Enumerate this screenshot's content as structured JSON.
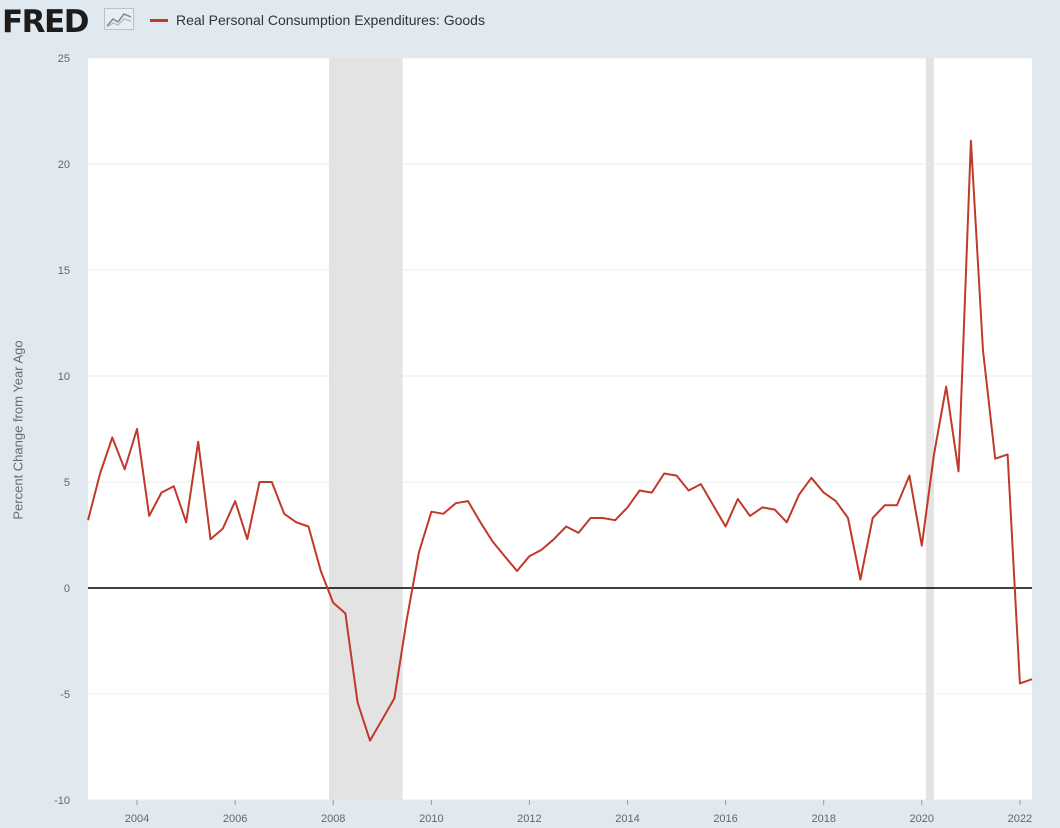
{
  "header": {
    "logo_text": "FRED",
    "logo_icon": "line-chart-icon"
  },
  "colors": {
    "series": "#c0392b",
    "recession": "#e3e3e3",
    "plot_bg": "#ffffff",
    "page_bg": "#e1e9f0",
    "gridline": "#ececec",
    "zero_line": "#000000"
  },
  "chart_data": {
    "type": "line",
    "title": "",
    "xlabel": "",
    "ylabel": "Percent Change from Year Ago",
    "ylim": [
      -10,
      25
    ],
    "yticks": [
      25,
      20,
      15,
      10,
      5,
      0,
      -5,
      -10
    ],
    "xlim": [
      "2003-01-01",
      "2022-04-01"
    ],
    "xticks": [
      "2004",
      "2006",
      "2008",
      "2010",
      "2012",
      "2014",
      "2016",
      "2018",
      "2020",
      "2022"
    ],
    "grid": true,
    "legend_position": "top-left",
    "recessions": [
      {
        "start": "2007-12-01",
        "end": "2009-06-01"
      },
      {
        "start": "2020-02-01",
        "end": "2020-04-01"
      }
    ],
    "series": [
      {
        "name": "Real Personal Consumption Expenditures: Goods",
        "color": "#c0392b",
        "x": [
          "2003-01-01",
          "2003-04-01",
          "2003-07-01",
          "2003-10-01",
          "2004-01-01",
          "2004-04-01",
          "2004-07-01",
          "2004-10-01",
          "2005-01-01",
          "2005-04-01",
          "2005-07-01",
          "2005-10-01",
          "2006-01-01",
          "2006-04-01",
          "2006-07-01",
          "2006-10-01",
          "2007-01-01",
          "2007-04-01",
          "2007-07-01",
          "2007-10-01",
          "2008-01-01",
          "2008-04-01",
          "2008-07-01",
          "2008-10-01",
          "2009-01-01",
          "2009-04-01",
          "2009-07-01",
          "2009-10-01",
          "2010-01-01",
          "2010-04-01",
          "2010-07-01",
          "2010-10-01",
          "2011-01-01",
          "2011-04-01",
          "2011-07-01",
          "2011-10-01",
          "2012-01-01",
          "2012-04-01",
          "2012-07-01",
          "2012-10-01",
          "2013-01-01",
          "2013-04-01",
          "2013-07-01",
          "2013-10-01",
          "2014-01-01",
          "2014-04-01",
          "2014-07-01",
          "2014-10-01",
          "2015-01-01",
          "2015-04-01",
          "2015-07-01",
          "2015-10-01",
          "2016-01-01",
          "2016-04-01",
          "2016-07-01",
          "2016-10-01",
          "2017-01-01",
          "2017-04-01",
          "2017-07-01",
          "2017-10-01",
          "2018-01-01",
          "2018-04-01",
          "2018-07-01",
          "2018-10-01",
          "2019-01-01",
          "2019-04-01",
          "2019-07-01",
          "2019-10-01",
          "2020-01-01",
          "2020-04-01",
          "2020-07-01",
          "2020-10-01",
          "2021-01-01",
          "2021-04-01",
          "2021-07-01",
          "2021-10-01",
          "2022-01-01",
          "2022-04-01"
        ],
        "values": [
          3.2,
          5.4,
          7.1,
          5.6,
          7.5,
          3.4,
          4.5,
          4.8,
          3.1,
          6.9,
          2.3,
          2.8,
          4.1,
          2.3,
          5.0,
          5.0,
          3.5,
          3.1,
          2.9,
          0.8,
          -0.7,
          -1.2,
          -5.4,
          -7.2,
          -6.2,
          -5.2,
          -1.5,
          1.7,
          3.6,
          3.5,
          4.0,
          4.1,
          3.1,
          2.2,
          1.5,
          0.8,
          1.5,
          1.8,
          2.3,
          2.9,
          2.6,
          3.3,
          3.3,
          3.2,
          3.8,
          4.6,
          4.5,
          5.4,
          5.3,
          4.6,
          4.9,
          3.9,
          2.9,
          4.2,
          3.4,
          3.8,
          3.7,
          3.1,
          4.4,
          5.2,
          4.5,
          4.1,
          3.3,
          0.4,
          3.3,
          3.9,
          3.9,
          5.3,
          2.0,
          6.3,
          9.5,
          5.5,
          21.1,
          11.2,
          6.1,
          6.3,
          -4.5,
          -4.3
        ]
      }
    ]
  }
}
